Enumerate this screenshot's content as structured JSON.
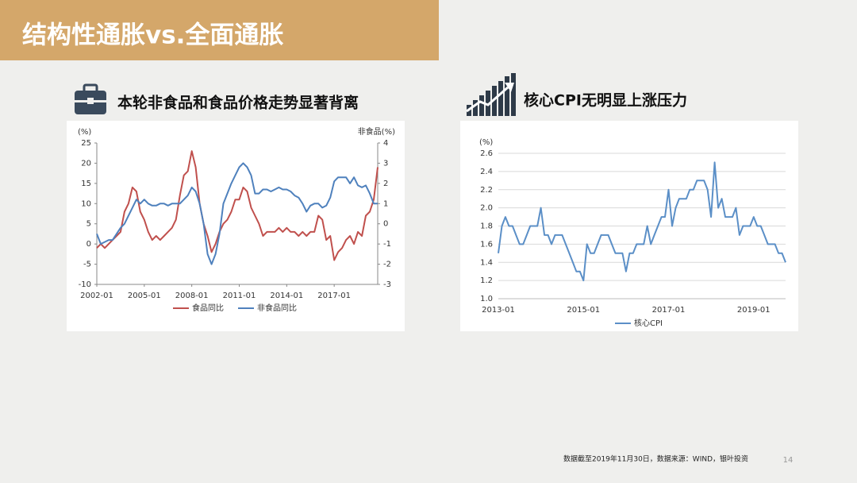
{
  "slide": {
    "title": "结构性通胀vs.全面通胀",
    "footnote": "数据截至2019年11月30日，数据来源：WIND，银叶投资",
    "page_number": 14
  },
  "chart_data": [
    {
      "type": "line",
      "title": "本轮非食品和食品价格走势显著背离",
      "y_label": "(%)",
      "y2_label": "非食品(%)",
      "categories": [
        "2002-01",
        null,
        null,
        null,
        null,
        null,
        null,
        null,
        null,
        null,
        null,
        null,
        "2005-01",
        null,
        null,
        null,
        null,
        null,
        null,
        null,
        null,
        null,
        null,
        null,
        "2008-01",
        null,
        null,
        null,
        null,
        null,
        null,
        null,
        null,
        null,
        null,
        null,
        "2011-01",
        null,
        null,
        null,
        null,
        null,
        null,
        null,
        null,
        null,
        null,
        null,
        "2014-01",
        null,
        null,
        null,
        null,
        null,
        null,
        null,
        null,
        null,
        null,
        null,
        "2017-01",
        null,
        null,
        null,
        null,
        null,
        null,
        null,
        null,
        null,
        null,
        null
      ],
      "series": [
        {
          "name": "食品同比",
          "color": "#c0504d",
          "axis": "y",
          "values": [
            -1,
            0,
            -1,
            0,
            1,
            2,
            3,
            8,
            10,
            14,
            13,
            8,
            6,
            3,
            1,
            2,
            1,
            2,
            3,
            4,
            6,
            12,
            17,
            18,
            23,
            19,
            10,
            5,
            2,
            -2,
            0,
            3,
            5,
            6,
            8,
            11,
            11,
            14,
            13,
            9,
            7,
            5,
            2,
            3,
            3,
            3,
            4,
            3,
            4,
            3,
            3,
            2,
            3,
            2,
            3,
            3,
            7,
            6,
            1,
            2,
            -4,
            -2,
            -1,
            1,
            2,
            0,
            3,
            2,
            7,
            8,
            11,
            19
          ]
        },
        {
          "name": "非食品同比",
          "color": "#4f81bd",
          "axis": "y2",
          "values": [
            -0.5,
            -1,
            -0.9,
            -0.8,
            -0.8,
            -0.5,
            -0.2,
            0,
            0.4,
            0.8,
            1.2,
            1.0,
            1.2,
            1.0,
            0.9,
            0.9,
            1.0,
            1.0,
            0.9,
            1.0,
            1.0,
            1.0,
            1.2,
            1.4,
            1.8,
            1.6,
            1.0,
            0,
            -1.5,
            -2,
            -1.5,
            -0.5,
            1.0,
            1.5,
            2.0,
            2.4,
            2.8,
            3.0,
            2.8,
            2.4,
            1.5,
            1.5,
            1.7,
            1.7,
            1.6,
            1.7,
            1.8,
            1.7,
            1.7,
            1.6,
            1.4,
            1.3,
            1.0,
            0.6,
            0.9,
            1.0,
            1.0,
            0.8,
            0.9,
            1.3,
            2.1,
            2.3,
            2.3,
            2.3,
            2.0,
            2.3,
            1.9,
            1.8,
            1.9,
            1.5,
            1.0,
            1.0
          ]
        }
      ],
      "ylim": [
        -10,
        25
      ],
      "yticks": [
        -10,
        -5,
        0,
        5,
        10,
        15,
        20,
        25
      ],
      "y2lim": [
        -3,
        4
      ],
      "y2ticks": [
        -3,
        -2,
        -1,
        0,
        1,
        2,
        3,
        4
      ],
      "grid": false
    },
    {
      "type": "line",
      "title": "核心CPI无明显上涨压力",
      "y_label": "(%)",
      "categories": [
        "2013-01",
        null,
        null,
        null,
        null,
        null,
        null,
        null,
        null,
        null,
        null,
        null,
        null,
        null,
        null,
        null,
        null,
        null,
        null,
        null,
        null,
        null,
        null,
        null,
        "2015-01",
        null,
        null,
        null,
        null,
        null,
        null,
        null,
        null,
        null,
        null,
        null,
        null,
        null,
        null,
        null,
        null,
        null,
        null,
        null,
        null,
        null,
        null,
        null,
        "2017-01",
        null,
        null,
        null,
        null,
        null,
        null,
        null,
        null,
        null,
        null,
        null,
        null,
        null,
        null,
        null,
        null,
        null,
        null,
        null,
        null,
        null,
        null,
        null,
        "2019-01",
        null,
        null,
        null,
        null,
        null,
        null,
        null,
        null,
        null
      ],
      "series": [
        {
          "name": "核心CPI",
          "color": "#5b8fc7",
          "axis": "y",
          "values": [
            1.5,
            1.8,
            1.9,
            1.8,
            1.8,
            1.7,
            1.6,
            1.6,
            1.7,
            1.8,
            1.8,
            1.8,
            2.0,
            1.7,
            1.7,
            1.6,
            1.7,
            1.7,
            1.7,
            1.6,
            1.5,
            1.4,
            1.3,
            1.3,
            1.2,
            1.6,
            1.5,
            1.5,
            1.6,
            1.7,
            1.7,
            1.7,
            1.6,
            1.5,
            1.5,
            1.5,
            1.3,
            1.5,
            1.5,
            1.6,
            1.6,
            1.6,
            1.8,
            1.6,
            1.7,
            1.8,
            1.9,
            1.9,
            2.2,
            1.8,
            2.0,
            2.1,
            2.1,
            2.1,
            2.2,
            2.2,
            2.3,
            2.3,
            2.3,
            2.2,
            1.9,
            2.5,
            2.0,
            2.1,
            1.9,
            1.9,
            1.9,
            2.0,
            1.7,
            1.8,
            1.8,
            1.8,
            1.9,
            1.8,
            1.8,
            1.7,
            1.6,
            1.6,
            1.6,
            1.5,
            1.5,
            1.4
          ]
        }
      ],
      "ylim": [
        1.0,
        2.6
      ],
      "yticks": [
        {
          "value": 1.0,
          "label": "1.0"
        },
        1.2,
        1.4,
        1.6,
        1.8,
        {
          "value": 2.0,
          "label": "2.0"
        },
        2.2,
        2.4,
        2.6
      ],
      "grid": true
    }
  ]
}
